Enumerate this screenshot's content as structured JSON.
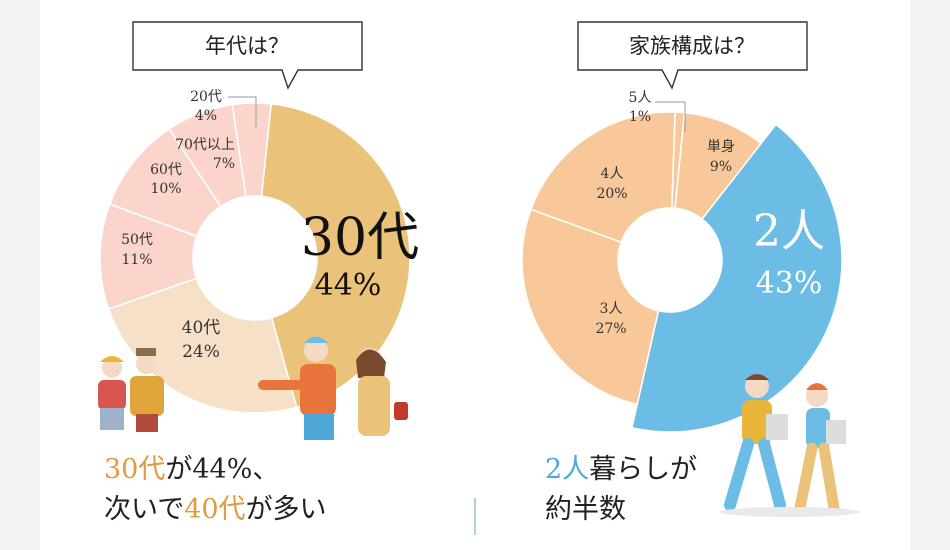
{
  "colors": {
    "age_30s": "#eac27a",
    "age_40s": "#f6e1c8",
    "age_other": "#fbd5cc",
    "fam_2": "#6bbde6",
    "fam_other": "#f9c89a",
    "accent_orange": "#e19a3d",
    "accent_blue": "#4fa9d8"
  },
  "chart_data": [
    {
      "type": "pie",
      "title": "年代は？",
      "slices": [
        {
          "label": "30代",
          "value": 44
        },
        {
          "label": "40代",
          "value": 24
        },
        {
          "label": "50代",
          "value": 11
        },
        {
          "label": "60代",
          "value": 10
        },
        {
          "label": "70代以上",
          "value": 7
        },
        {
          "label": "20代",
          "value": 4
        }
      ],
      "unit": "%"
    },
    {
      "type": "pie",
      "title": "家族構成は？",
      "slices": [
        {
          "label": "2人",
          "value": 43
        },
        {
          "label": "3人",
          "value": 27
        },
        {
          "label": "4人",
          "value": 20
        },
        {
          "label": "5人",
          "value": 1
        },
        {
          "label": "単身",
          "value": 9
        }
      ],
      "unit": "%"
    }
  ],
  "age": {
    "title": "年代は？",
    "labels": {
      "s30": "30代",
      "p30": "44%",
      "s40": "40代",
      "p40": "24%",
      "s50": "50代",
      "p50": "11%",
      "s60": "60代",
      "p60": "10%",
      "s70": "70代以上",
      "p70": "7%",
      "s20": "20代",
      "p20": "4%"
    },
    "caption": {
      "part1": "30代",
      "part2": "が44%、",
      "part3": "次いで",
      "part4": "40代",
      "part5": "が多い"
    }
  },
  "family": {
    "title": "家族構成は？",
    "labels": {
      "s2": "2人",
      "p2": "43%",
      "s3": "3人",
      "p3": "27%",
      "s4": "4人",
      "p4": "20%",
      "s5": "5人",
      "p5": "1%",
      "s1": "単身",
      "p1": "9%"
    },
    "caption": {
      "part1": "2人",
      "part2": "暮らしが",
      "part3": "約半数"
    }
  }
}
